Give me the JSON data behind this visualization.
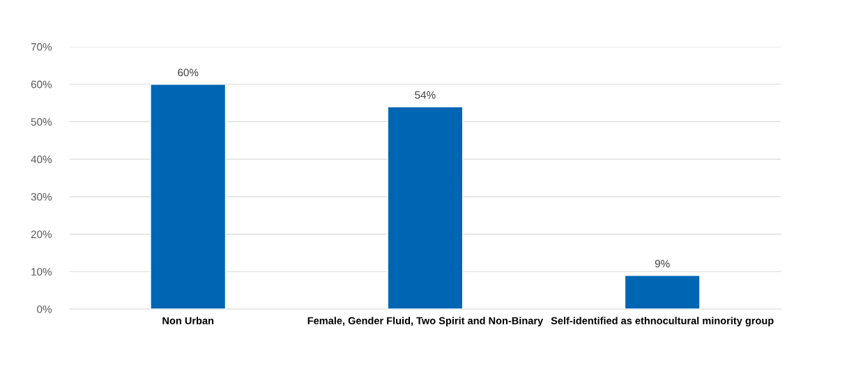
{
  "chart_data": {
    "type": "bar",
    "categories": [
      "Non Urban",
      "Female, Gender Fluid, Two Spirit and Non-Binary",
      "Self-identified as ethnocultural minority group"
    ],
    "values": [
      60,
      54,
      9
    ],
    "value_labels": [
      "60%",
      "54%",
      "9%"
    ],
    "color": "#0066b3",
    "ylim": [
      0,
      70
    ],
    "yticks": [
      {
        "value": 0,
        "label": "0%"
      },
      {
        "value": 10,
        "label": "10%"
      },
      {
        "value": 20,
        "label": "20%"
      },
      {
        "value": 30,
        "label": "30%"
      },
      {
        "value": 40,
        "label": "40%"
      },
      {
        "value": 50,
        "label": "50%"
      },
      {
        "value": 60,
        "label": "60%"
      },
      {
        "value": 70,
        "label": "70%"
      }
    ],
    "grid": "y",
    "legend": false
  }
}
